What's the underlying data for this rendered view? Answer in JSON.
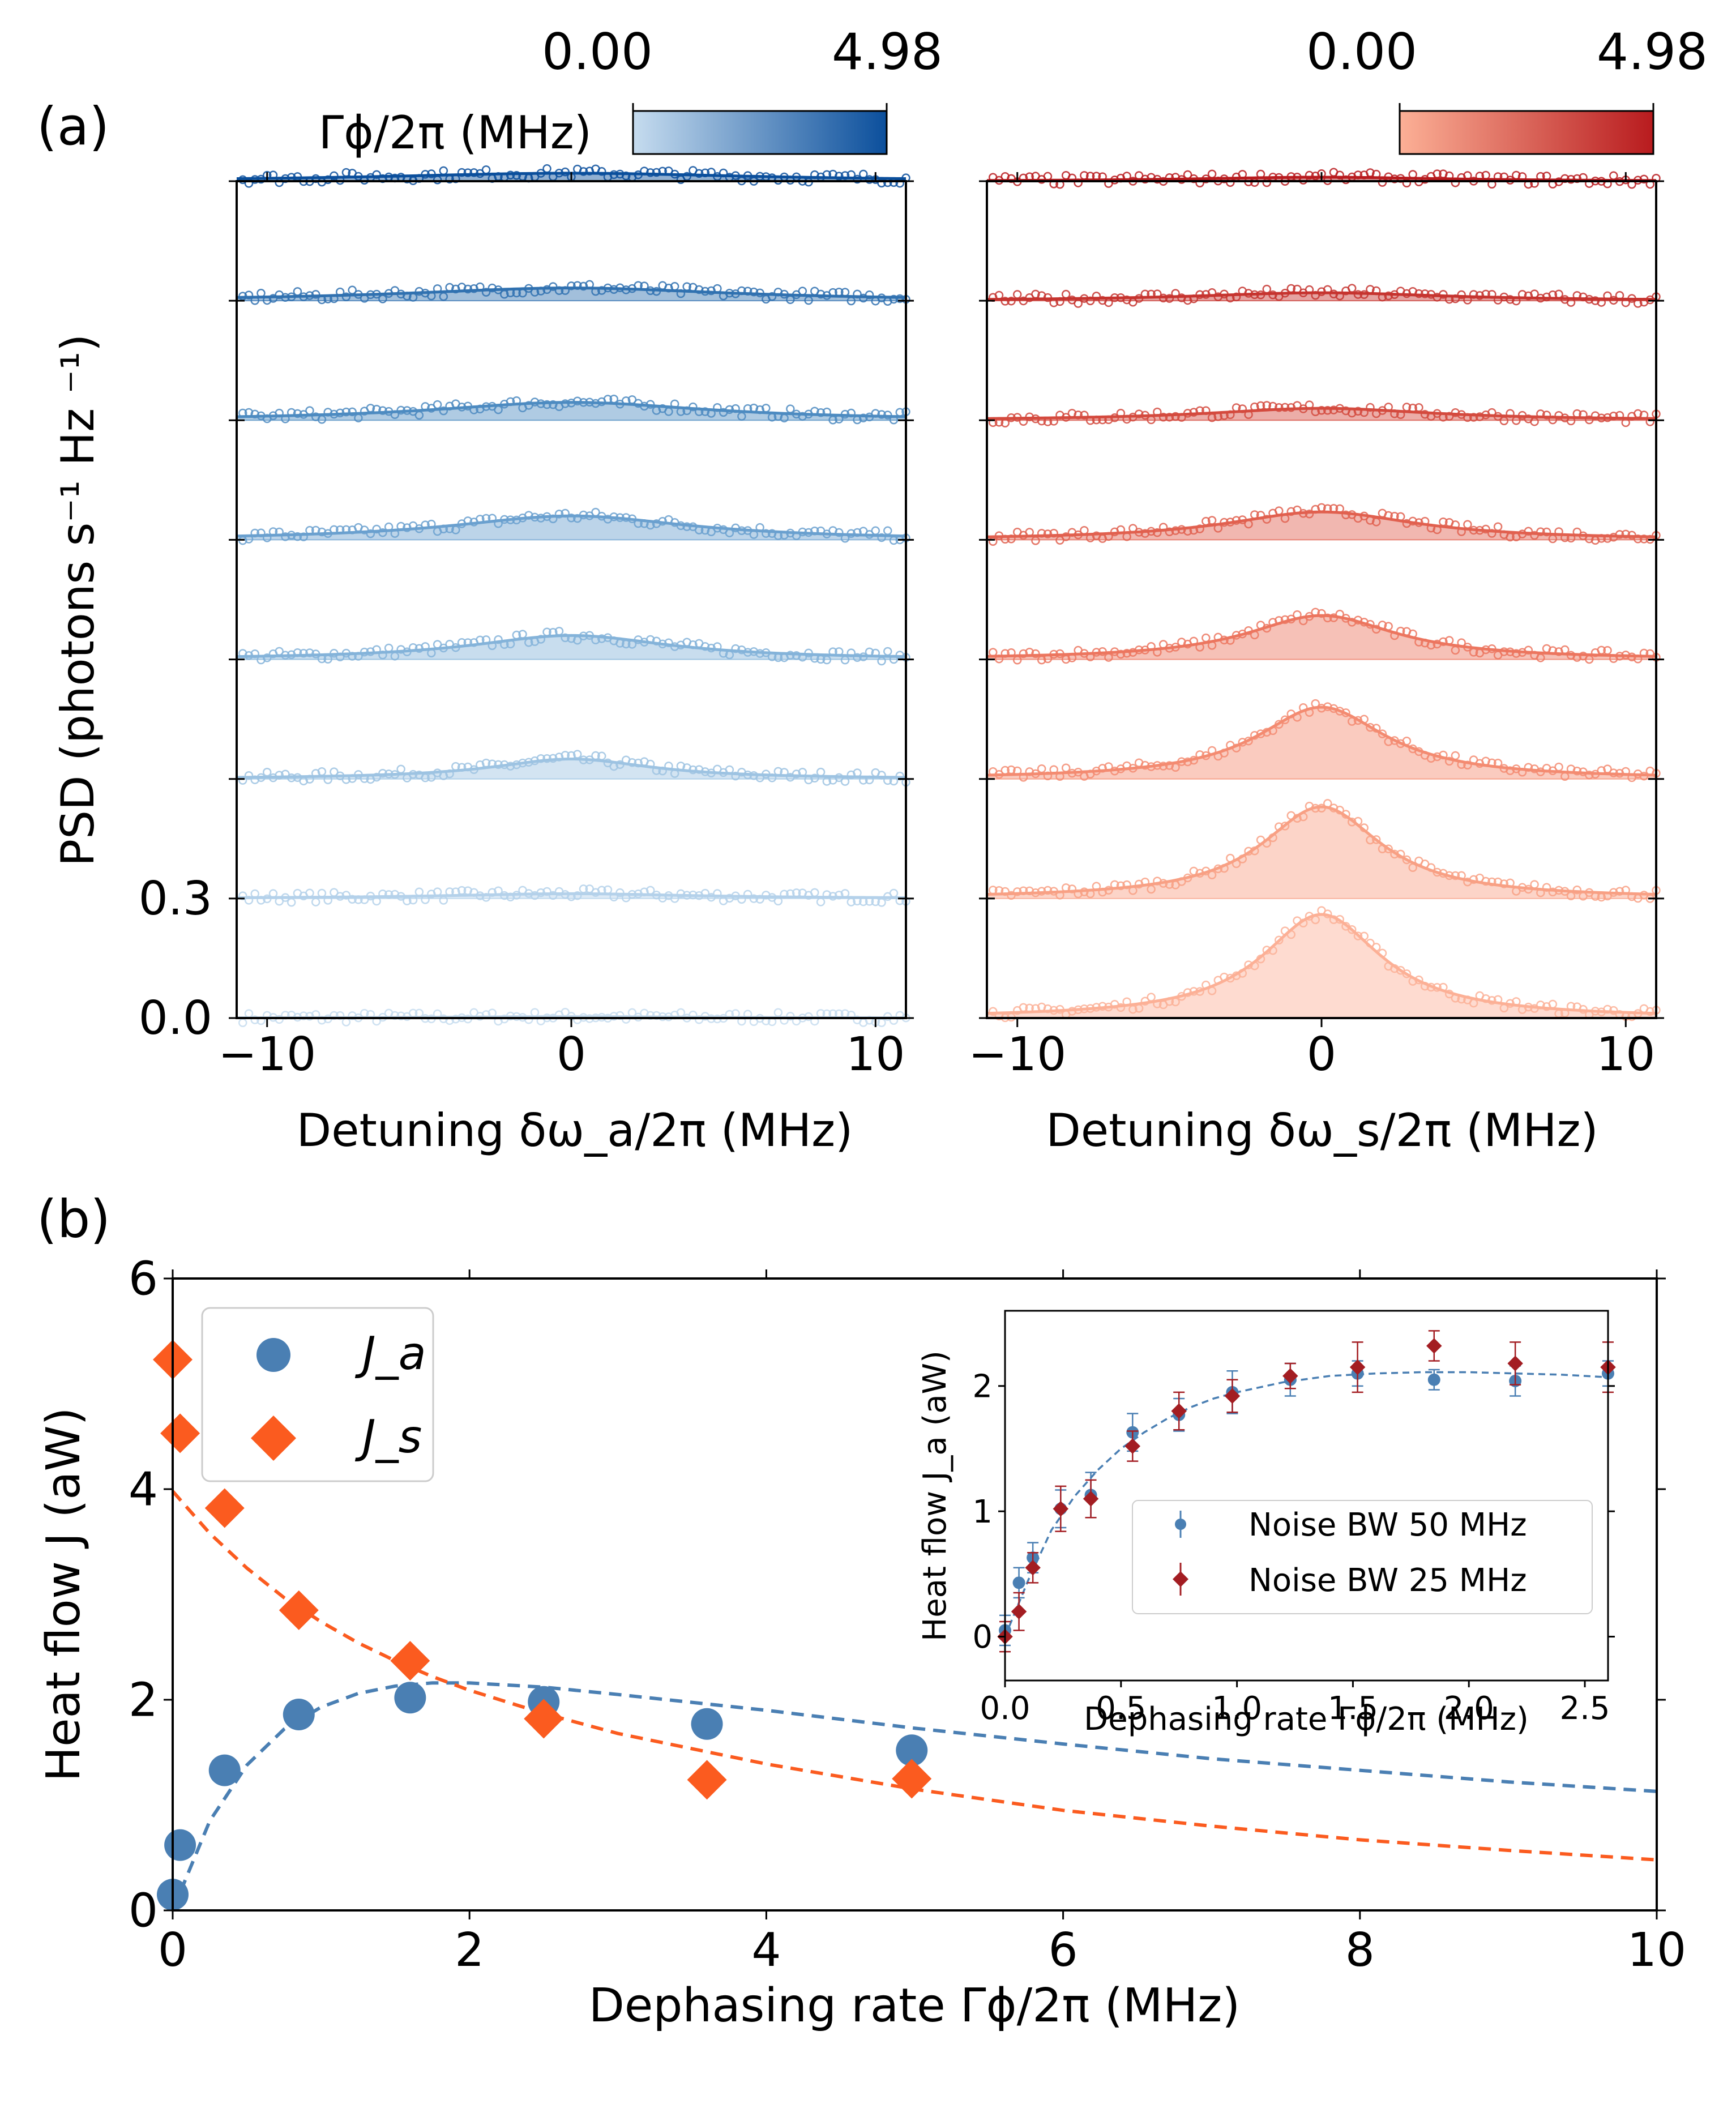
{
  "panel_labels": {
    "a": "(a)",
    "b": "(b)"
  },
  "colorbars": {
    "left": {
      "label": "Γϕ/2π (MHz)",
      "min_label": "0.00",
      "max_label": "4.98",
      "colors": [
        "#c6dcef",
        "#0b4f9c"
      ]
    },
    "right": {
      "min_label": "0.00",
      "max_label": "4.98",
      "colors": [
        "#fcb096",
        "#b81b1e"
      ]
    }
  },
  "chart_data": [
    {
      "id": "a-left",
      "type": "line",
      "title": "",
      "xlabel": "Detuning δω_a/2π (MHz)",
      "ylabel": "PSD (photons s⁻¹ Hz ⁻¹)",
      "xlim": [
        -11,
        11
      ],
      "xticks": [
        "−10",
        "0",
        "10"
      ],
      "ylim": [
        0,
        2.1
      ],
      "yticks": [
        "0.0",
        "0.3"
      ],
      "offset_step": 0.3,
      "traces": [
        {
          "gamma_phi": 0.0,
          "peak": 0.004,
          "width": 5,
          "color": "#c6dcef"
        },
        {
          "gamma_phi": 0.05,
          "peak": 0.012,
          "width": 5,
          "color": "#b4d1ea"
        },
        {
          "gamma_phi": 0.35,
          "peak": 0.05,
          "width": 3.2,
          "color": "#9dc3e2"
        },
        {
          "gamma_phi": 0.85,
          "peak": 0.06,
          "width": 4.0,
          "color": "#84b3d9"
        },
        {
          "gamma_phi": 1.6,
          "peak": 0.06,
          "width": 4.8,
          "color": "#6aa0cf"
        },
        {
          "gamma_phi": 2.5,
          "peak": 0.045,
          "width": 5.5,
          "color": "#4d8bc1"
        },
        {
          "gamma_phi": 3.6,
          "peak": 0.032,
          "width": 6.5,
          "color": "#3071b0"
        },
        {
          "gamma_phi": 4.98,
          "peak": 0.02,
          "width": 7.5,
          "color": "#0b4f9c"
        }
      ]
    },
    {
      "id": "a-right",
      "type": "line",
      "title": "",
      "xlabel": "Detuning δω_s/2π (MHz)",
      "ylabel": "",
      "xlim": [
        -11,
        11
      ],
      "xticks": [
        "−10",
        "0",
        "10"
      ],
      "ylim": [
        0,
        2.1
      ],
      "offset_step": 0.3,
      "traces": [
        {
          "gamma_phi": 0.0,
          "peak": 0.26,
          "width": 2.4,
          "color": "#fcb096"
        },
        {
          "gamma_phi": 0.05,
          "peak": 0.23,
          "width": 2.4,
          "color": "#f8a084"
        },
        {
          "gamma_phi": 0.35,
          "peak": 0.18,
          "width": 2.6,
          "color": "#f38b71"
        },
        {
          "gamma_phi": 0.85,
          "peak": 0.11,
          "width": 3.0,
          "color": "#ec765f"
        },
        {
          "gamma_phi": 1.6,
          "peak": 0.07,
          "width": 3.8,
          "color": "#e1604f"
        },
        {
          "gamma_phi": 2.5,
          "peak": 0.03,
          "width": 4.5,
          "color": "#d44a3e"
        },
        {
          "gamma_phi": 3.6,
          "peak": 0.02,
          "width": 5.0,
          "color": "#c6342f"
        },
        {
          "gamma_phi": 4.98,
          "peak": 0.01,
          "width": 5.0,
          "color": "#b81b1e"
        }
      ]
    },
    {
      "id": "b-main",
      "type": "scatter",
      "title": "",
      "xlabel": "Dephasing rate Γϕ/2π (MHz)",
      "ylabel": "Heat flow J (aW)",
      "xlim": [
        0,
        10
      ],
      "ylim": [
        0,
        6
      ],
      "xticks": [
        "0",
        "2",
        "4",
        "6",
        "8",
        "10"
      ],
      "yticks": [
        "0",
        "2",
        "4",
        "6"
      ],
      "legend": [
        "J_a",
        "J_s"
      ],
      "series": [
        {
          "name": "J_a",
          "marker": "circle",
          "color": "#4a7fb3",
          "x": [
            0.0,
            0.05,
            0.35,
            0.85,
            1.6,
            2.5,
            3.6,
            4.98
          ],
          "y": [
            0.15,
            0.62,
            1.33,
            1.86,
            2.02,
            1.98,
            1.77,
            1.52
          ]
        },
        {
          "name": "J_s",
          "marker": "diamond",
          "color": "#fb5b1f",
          "x": [
            0.0,
            0.05,
            0.35,
            0.85,
            1.6,
            2.5,
            3.6,
            4.98
          ],
          "y": [
            5.23,
            4.53,
            3.82,
            2.85,
            2.37,
            1.82,
            1.24,
            1.25
          ]
        }
      ],
      "fits": [
        {
          "name": "J_a fit",
          "color": "#4a7fb3",
          "dashed": true,
          "x": [
            0,
            0.25,
            0.5,
            0.75,
            1.0,
            1.25,
            1.5,
            1.75,
            2.0,
            2.5,
            3,
            4,
            5,
            6,
            7,
            8,
            9,
            10
          ],
          "y": [
            0,
            0.85,
            1.38,
            1.72,
            1.93,
            2.06,
            2.13,
            2.16,
            2.16,
            2.12,
            2.05,
            1.9,
            1.73,
            1.58,
            1.44,
            1.33,
            1.22,
            1.13
          ]
        },
        {
          "name": "J_s fit",
          "color": "#fb5b1f",
          "dashed": true,
          "x": [
            0,
            0.25,
            0.5,
            0.75,
            1.0,
            1.25,
            1.5,
            1.75,
            2.0,
            2.5,
            3,
            4,
            5,
            6,
            7,
            8,
            9,
            10
          ],
          "y": [
            3.98,
            3.58,
            3.25,
            2.97,
            2.74,
            2.54,
            2.37,
            2.22,
            2.09,
            1.87,
            1.68,
            1.39,
            1.15,
            0.95,
            0.8,
            0.67,
            0.57,
            0.48
          ]
        }
      ]
    },
    {
      "id": "b-inset",
      "type": "scatter",
      "title": "",
      "xlabel": "Dephasing rate Γϕ/2π (MHz)",
      "ylabel": "Heat flow J_a (aW)",
      "xlim": [
        0,
        2.6
      ],
      "ylim": [
        -0.35,
        2.6
      ],
      "xticks": [
        "0.0",
        "0.5",
        "1.0",
        "1.5",
        "2.0",
        "2.5"
      ],
      "yticks": [
        "0",
        "1",
        "2"
      ],
      "legend": [
        "Noise BW 50 MHz",
        "Noise BW 25 MHz"
      ],
      "series": [
        {
          "name": "Noise BW 50 MHz",
          "marker": "circle",
          "color": "#4a7fb3",
          "x": [
            0.0,
            0.06,
            0.12,
            0.24,
            0.37,
            0.55,
            0.75,
            0.98,
            1.23,
            1.52,
            1.85,
            2.2,
            2.6
          ],
          "y": [
            0.05,
            0.43,
            0.63,
            1.02,
            1.13,
            1.63,
            1.77,
            1.95,
            2.05,
            2.1,
            2.05,
            2.04,
            2.1
          ],
          "err": [
            0.12,
            0.12,
            0.12,
            0.15,
            0.18,
            0.15,
            0.13,
            0.17,
            0.13,
            0.1,
            0.08,
            0.12,
            0.1
          ]
        },
        {
          "name": "Noise BW 25 MHz",
          "marker": "diamond",
          "color": "#a31d22",
          "x": [
            0.0,
            0.06,
            0.12,
            0.24,
            0.37,
            0.55,
            0.75,
            0.98,
            1.23,
            1.52,
            1.85,
            2.2,
            2.6
          ],
          "y": [
            0.0,
            0.2,
            0.55,
            1.02,
            1.1,
            1.52,
            1.8,
            1.92,
            2.08,
            2.15,
            2.32,
            2.18,
            2.15
          ],
          "err": [
            0.12,
            0.15,
            0.12,
            0.18,
            0.15,
            0.12,
            0.15,
            0.13,
            0.1,
            0.2,
            0.12,
            0.17,
            0.2
          ]
        }
      ],
      "fits": [
        {
          "name": "inset fit",
          "color": "#4a7fb3",
          "dashed": true,
          "x": [
            0,
            0.1,
            0.2,
            0.3,
            0.4,
            0.5,
            0.6,
            0.7,
            0.8,
            0.9,
            1.0,
            1.2,
            1.4,
            1.6,
            1.8,
            2.0,
            2.2,
            2.4,
            2.6
          ],
          "y": [
            0.0,
            0.45,
            0.85,
            1.12,
            1.33,
            1.5,
            1.63,
            1.74,
            1.83,
            1.9,
            1.95,
            2.03,
            2.08,
            2.1,
            2.11,
            2.11,
            2.1,
            2.09,
            2.07
          ]
        }
      ]
    }
  ]
}
